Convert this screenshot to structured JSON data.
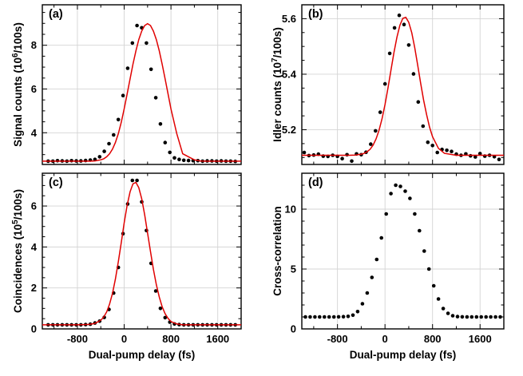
{
  "chart_data": [
    {
      "type": "scatter",
      "panel_label": "(a)",
      "xlabel": "",
      "ylabel": "Signal counts (10^6/100s)",
      "xlim": [
        -1400,
        2000
      ],
      "ylim": [
        2.55,
        9.85
      ],
      "xticks": [
        -800,
        0,
        800,
        1600
      ],
      "yticks": [
        4,
        6,
        8
      ],
      "ytick_labels": [
        "4",
        "6",
        "8"
      ],
      "grid": true,
      "series": [
        {
          "style": "points",
          "x": [
            -1300,
            -1220,
            -1140,
            -1060,
            -980,
            -900,
            -820,
            -740,
            -660,
            -580,
            -500,
            -420,
            -340,
            -260,
            -180,
            -100,
            -20,
            60,
            140,
            220,
            300,
            380,
            460,
            540,
            620,
            700,
            780,
            860,
            940,
            1020,
            1100,
            1180,
            1260,
            1340,
            1420,
            1500,
            1580,
            1660,
            1740,
            1820,
            1900
          ],
          "y": [
            2.7,
            2.7,
            2.72,
            2.71,
            2.7,
            2.72,
            2.71,
            2.71,
            2.73,
            2.75,
            2.78,
            2.9,
            3.15,
            3.5,
            3.9,
            4.6,
            5.7,
            6.95,
            8.1,
            8.9,
            8.8,
            8.1,
            6.9,
            5.6,
            4.4,
            3.55,
            3.1,
            2.85,
            2.78,
            2.74,
            2.73,
            2.72,
            2.72,
            2.7,
            2.71,
            2.71,
            2.7,
            2.71,
            2.7,
            2.7,
            2.69
          ]
        },
        {
          "style": "fit",
          "x": [
            -1400,
            -1300,
            -1200,
            -1100,
            -1000,
            -900,
            -800,
            -700,
            -600,
            -500,
            -400,
            -350,
            -300,
            -250,
            -200,
            -150,
            -100,
            -50,
            0,
            50,
            100,
            150,
            200,
            250,
            300,
            350,
            400,
            450,
            500,
            550,
            600,
            650,
            700,
            750,
            800,
            900,
            1000,
            1100,
            1200,
            1300,
            1400,
            1500,
            1600,
            1700,
            1800,
            1900,
            2000
          ],
          "y": [
            2.7,
            2.7,
            2.7,
            2.7,
            2.7,
            2.7,
            2.7,
            2.7,
            2.7,
            2.71,
            2.76,
            2.81,
            2.9,
            3.04,
            3.25,
            3.55,
            3.96,
            4.48,
            5.09,
            5.77,
            6.46,
            7.13,
            7.74,
            8.26,
            8.65,
            8.9,
            8.99,
            8.9,
            8.65,
            8.26,
            7.74,
            7.13,
            6.46,
            5.77,
            5.09,
            3.96,
            3.04,
            2.9,
            2.76,
            2.71,
            2.7,
            2.7,
            2.7,
            2.7,
            2.7,
            2.7,
            2.7
          ]
        }
      ]
    },
    {
      "type": "scatter",
      "panel_label": "(b)",
      "xlabel": "",
      "ylabel": "Idler counts (10^7/100s)",
      "xlim": [
        -1400,
        2000
      ],
      "ylim": [
        5.075,
        5.65
      ],
      "xticks": [
        -800,
        0,
        800,
        1600
      ],
      "yticks": [
        5.2,
        5.4,
        5.6
      ],
      "ytick_labels": [
        "5.2",
        "5.4",
        "5.6"
      ],
      "grid": true,
      "series": [
        {
          "style": "points",
          "x": [
            -1360,
            -1280,
            -1200,
            -1120,
            -1040,
            -960,
            -880,
            -800,
            -720,
            -640,
            -560,
            -480,
            -400,
            -320,
            -240,
            -160,
            -80,
            0,
            80,
            160,
            240,
            320,
            400,
            480,
            560,
            640,
            720,
            800,
            880,
            960,
            1040,
            1120,
            1200,
            1280,
            1360,
            1440,
            1520,
            1600,
            1680,
            1760,
            1840,
            1920
          ],
          "y": [
            5.118,
            5.107,
            5.109,
            5.112,
            5.105,
            5.104,
            5.108,
            5.104,
            5.096,
            5.11,
            5.087,
            5.113,
            5.11,
            5.119,
            5.148,
            5.196,
            5.263,
            5.365,
            5.475,
            5.567,
            5.612,
            5.579,
            5.505,
            5.401,
            5.3,
            5.213,
            5.155,
            5.143,
            5.118,
            5.129,
            5.126,
            5.122,
            5.112,
            5.108,
            5.113,
            5.106,
            5.102,
            5.114,
            5.105,
            5.108,
            5.103,
            5.093
          ]
        },
        {
          "style": "fit",
          "x": [
            -1400,
            -1200,
            -1000,
            -800,
            -600,
            -500,
            -400,
            -350,
            -300,
            -250,
            -200,
            -150,
            -100,
            -50,
            0,
            50,
            100,
            150,
            200,
            250,
            300,
            350,
            400,
            450,
            500,
            550,
            600,
            650,
            700,
            750,
            800,
            900,
            1000,
            1200,
            1400,
            1600,
            1800,
            2000
          ],
          "y": [
            5.108,
            5.108,
            5.108,
            5.108,
            5.108,
            5.109,
            5.112,
            5.115,
            5.121,
            5.13,
            5.145,
            5.167,
            5.198,
            5.24,
            5.291,
            5.35,
            5.414,
            5.477,
            5.533,
            5.576,
            5.601,
            5.605,
            5.587,
            5.549,
            5.496,
            5.433,
            5.368,
            5.307,
            5.254,
            5.209,
            5.175,
            5.133,
            5.115,
            5.108,
            5.108,
            5.108,
            5.108,
            5.108
          ]
        }
      ]
    },
    {
      "type": "scatter",
      "panel_label": "(c)",
      "xlabel": "Dual-pump delay (fs)",
      "ylabel": "Coincidences (10^5/100s)",
      "xlim": [
        -1400,
        2000
      ],
      "ylim": [
        0,
        7.6
      ],
      "xticks": [
        -800,
        0,
        800,
        1600
      ],
      "yticks": [
        0,
        2,
        4,
        6
      ],
      "ytick_labels": [
        "0",
        "2",
        "4",
        "6"
      ],
      "grid": true,
      "series": [
        {
          "style": "points",
          "x": [
            -1300,
            -1220,
            -1140,
            -1060,
            -980,
            -900,
            -820,
            -740,
            -660,
            -580,
            -500,
            -420,
            -340,
            -260,
            -180,
            -100,
            -20,
            60,
            140,
            220,
            300,
            380,
            460,
            540,
            620,
            700,
            780,
            860,
            940,
            1020,
            1100,
            1180,
            1260,
            1340,
            1420,
            1500,
            1580,
            1660,
            1740,
            1820,
            1900
          ],
          "y": [
            0.2,
            0.2,
            0.2,
            0.2,
            0.2,
            0.2,
            0.2,
            0.2,
            0.21,
            0.23,
            0.29,
            0.38,
            0.56,
            0.95,
            1.75,
            3.0,
            4.65,
            6.1,
            7.25,
            7.25,
            6.2,
            4.8,
            3.2,
            1.85,
            1.0,
            0.55,
            0.33,
            0.24,
            0.21,
            0.2,
            0.2,
            0.2,
            0.2,
            0.2,
            0.2,
            0.2,
            0.2,
            0.2,
            0.2,
            0.2,
            0.2
          ]
        },
        {
          "style": "fit",
          "x": [
            -1400,
            -1200,
            -1000,
            -800,
            -700,
            -600,
            -500,
            -400,
            -350,
            -300,
            -250,
            -200,
            -150,
            -100,
            -50,
            0,
            50,
            100,
            150,
            200,
            250,
            300,
            350,
            400,
            450,
            500,
            550,
            600,
            650,
            700,
            750,
            800,
            900,
            1000,
            1200,
            1400,
            1600,
            1800,
            2000
          ],
          "y": [
            0.2,
            0.2,
            0.2,
            0.2,
            0.21,
            0.22,
            0.27,
            0.42,
            0.58,
            0.83,
            1.21,
            1.74,
            2.43,
            3.28,
            4.22,
            5.17,
            6.03,
            6.69,
            7.08,
            7.15,
            6.9,
            6.35,
            5.57,
            4.68,
            3.77,
            2.91,
            2.16,
            1.55,
            1.08,
            0.74,
            0.51,
            0.36,
            0.24,
            0.2,
            0.2,
            0.2,
            0.2,
            0.2,
            0.2
          ]
        }
      ]
    },
    {
      "type": "scatter",
      "panel_label": "(d)",
      "xlabel": "Dual-pump delay (fs)",
      "ylabel": "Cross-correlation",
      "xlim": [
        -1400,
        2000
      ],
      "ylim": [
        0,
        13
      ],
      "xticks": [
        -800,
        0,
        800,
        1600
      ],
      "yticks": [
        0,
        5,
        10
      ],
      "ytick_labels": [
        "0",
        "5",
        "10"
      ],
      "grid": true,
      "series": [
        {
          "style": "points",
          "x": [
            -1340,
            -1260,
            -1180,
            -1100,
            -1020,
            -940,
            -860,
            -780,
            -700,
            -620,
            -540,
            -460,
            -380,
            -300,
            -220,
            -140,
            -60,
            20,
            100,
            180,
            260,
            340,
            420,
            500,
            580,
            660,
            740,
            820,
            900,
            980,
            1060,
            1140,
            1220,
            1300,
            1380,
            1460,
            1540,
            1620,
            1700,
            1780,
            1860,
            1940
          ],
          "y": [
            1.0,
            1.0,
            1.0,
            1.0,
            1.0,
            1.0,
            1.0,
            1.01,
            1.02,
            1.05,
            1.15,
            1.45,
            2.1,
            3.0,
            4.3,
            5.8,
            7.6,
            9.6,
            11.3,
            12.0,
            11.9,
            11.5,
            10.9,
            9.6,
            8.2,
            6.5,
            5.0,
            3.6,
            2.5,
            1.7,
            1.3,
            1.1,
            1.03,
            1.01,
            1.0,
            1.0,
            1.0,
            1.0,
            1.0,
            1.0,
            1.0,
            1.0
          ]
        }
      ]
    }
  ]
}
